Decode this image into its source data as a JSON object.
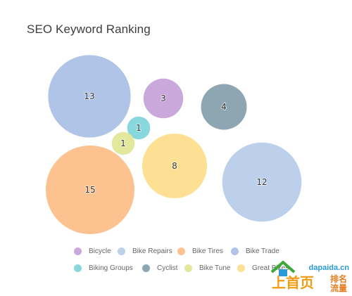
{
  "chart_data": {
    "type": "bubble",
    "title": "SEO Keyword Ranking",
    "legend_position": "bottom",
    "series": [
      {
        "name": "Bicycle",
        "value": 3,
        "color": "#cba8dc"
      },
      {
        "name": "Bike Repairs",
        "value": 12,
        "color": "#bccfeb"
      },
      {
        "name": "Bike Tires",
        "value": 15,
        "color": "#fcc28f"
      },
      {
        "name": "Bike Trade",
        "value": 13,
        "color": "#afc4e6"
      },
      {
        "name": "Biking Groups",
        "value": 1,
        "color": "#88d7dd"
      },
      {
        "name": "Cyclist",
        "value": 4,
        "color": "#8ea6b1"
      },
      {
        "name": "Bike Tune",
        "value": 1,
        "color": "#e4e89c"
      },
      {
        "name": "Great Bikes",
        "value": 8,
        "color": "#fde093"
      }
    ]
  },
  "watermark": {
    "domain": "dapaida.cn",
    "big_text": "上首页",
    "small_text": "排名流量",
    "colors": {
      "green": "#3aa935",
      "blue": "#2a9bd6",
      "orange": "#f39c12"
    }
  }
}
